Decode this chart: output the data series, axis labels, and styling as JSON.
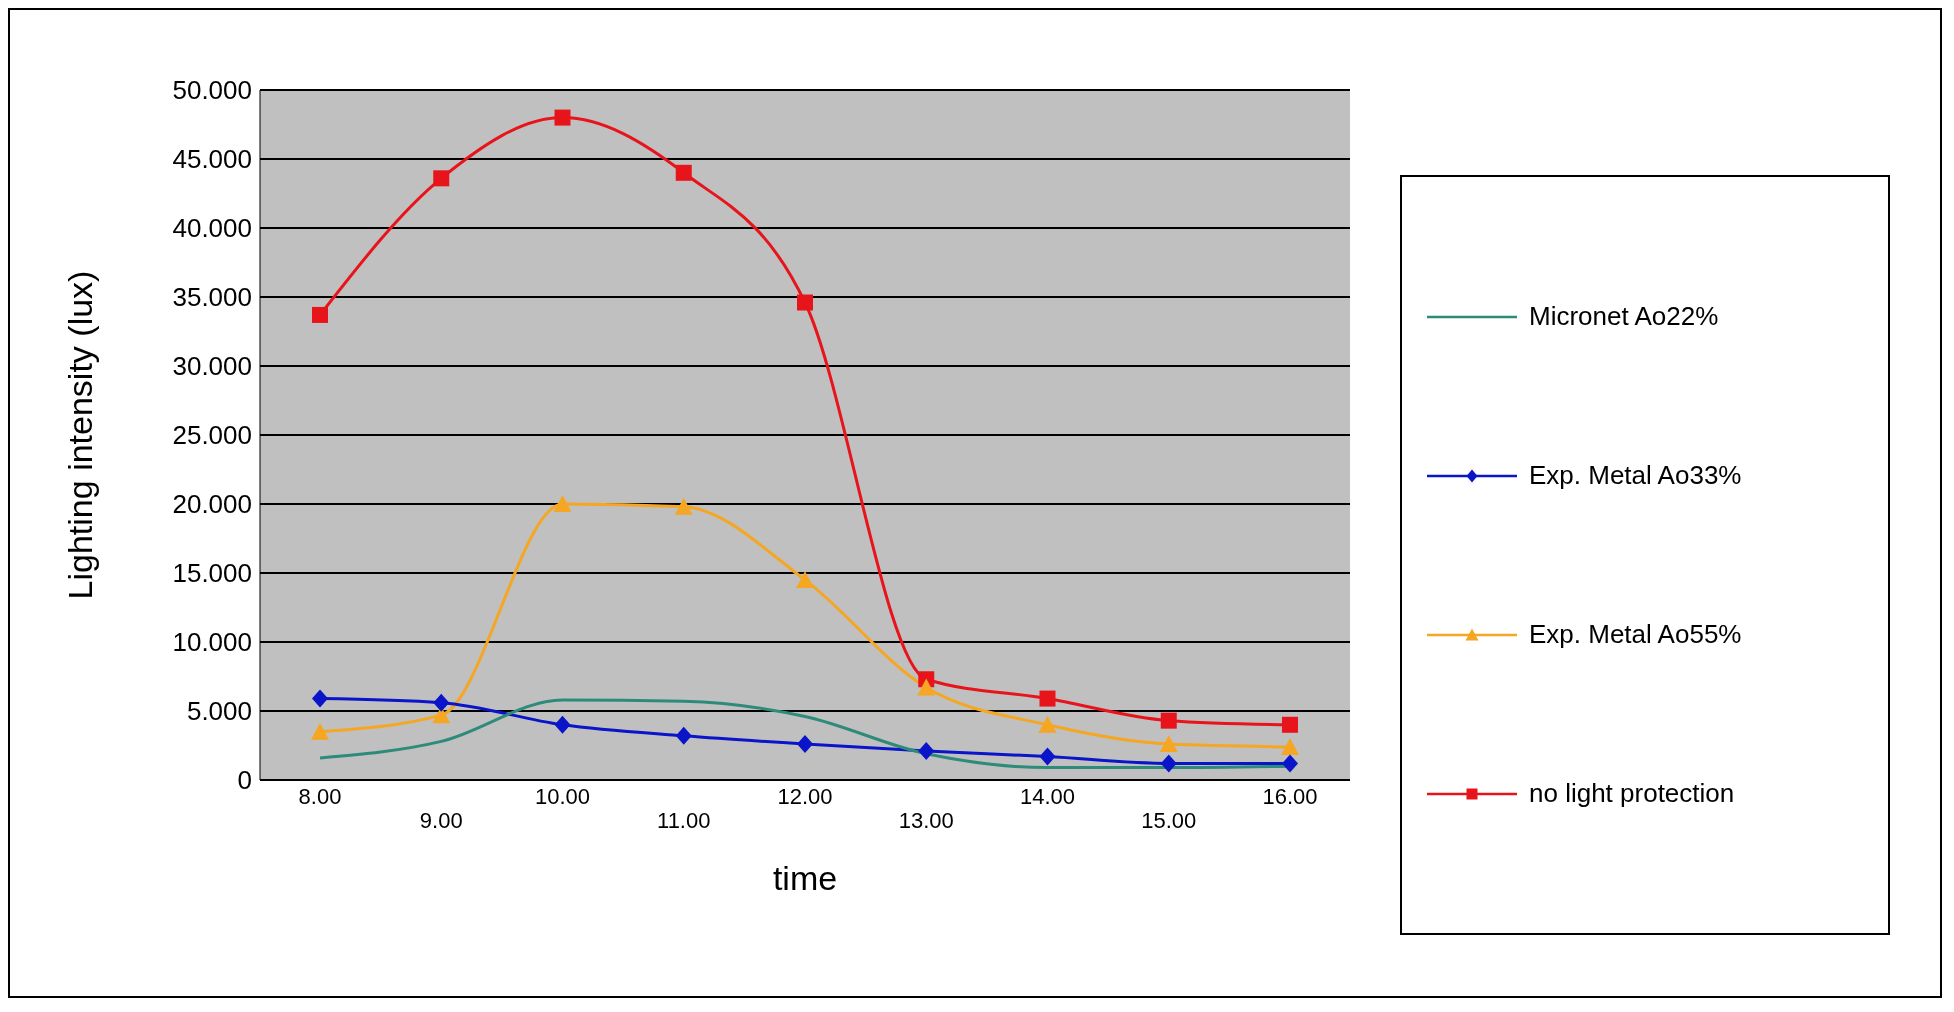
{
  "chart_data": {
    "type": "line",
    "xlabel": "time",
    "ylabel": "Lighting intensity (lux)",
    "categories": [
      "8.00",
      "9.00",
      "10.00",
      "11.00",
      "12.00",
      "13.00",
      "14.00",
      "15.00",
      "16.00"
    ],
    "series": [
      {
        "name": "Micronet Ao22%",
        "color": "#2e8b7a",
        "marker": "none",
        "values": [
          1.6,
          2.8,
          5.8,
          5.7,
          4.6,
          1.9,
          0.9,
          0.9,
          1.0
        ]
      },
      {
        "name": "Exp. Metal Ao33%",
        "color": "#0a14c8",
        "marker": "diamond",
        "values": [
          5.9,
          5.6,
          4.0,
          3.2,
          2.6,
          2.1,
          1.7,
          1.2,
          1.2
        ]
      },
      {
        "name": "Exp. Metal Ao55%",
        "color": "#f5a623",
        "marker": "triangle",
        "values": [
          3.5,
          4.7,
          20.0,
          19.8,
          14.5,
          6.7,
          4.0,
          2.6,
          2.4
        ]
      },
      {
        "name": "no light protection",
        "color": "#e8141c",
        "marker": "square",
        "values": [
          33.7,
          43.6,
          48.0,
          44.0,
          34.6,
          7.3,
          5.9,
          4.3,
          4.0
        ]
      }
    ],
    "ylim": [
      0,
      50
    ],
    "yticks": [
      0,
      {
        "value": 5,
        "label": "5.000"
      },
      {
        "value": 10,
        "label": "10.000"
      },
      {
        "value": 15,
        "label": "15.000"
      },
      {
        "value": 20,
        "label": "20.000"
      },
      {
        "value": 25,
        "label": "25.000"
      },
      {
        "value": 30,
        "label": "30.000"
      },
      {
        "value": 35,
        "label": "35.000"
      },
      {
        "value": 40,
        "label": "40.000"
      },
      {
        "value": 45,
        "label": "45.000"
      },
      {
        "value": 50,
        "label": "50.000"
      }
    ],
    "grid": "y",
    "legend": "right",
    "line_style": "solid"
  }
}
